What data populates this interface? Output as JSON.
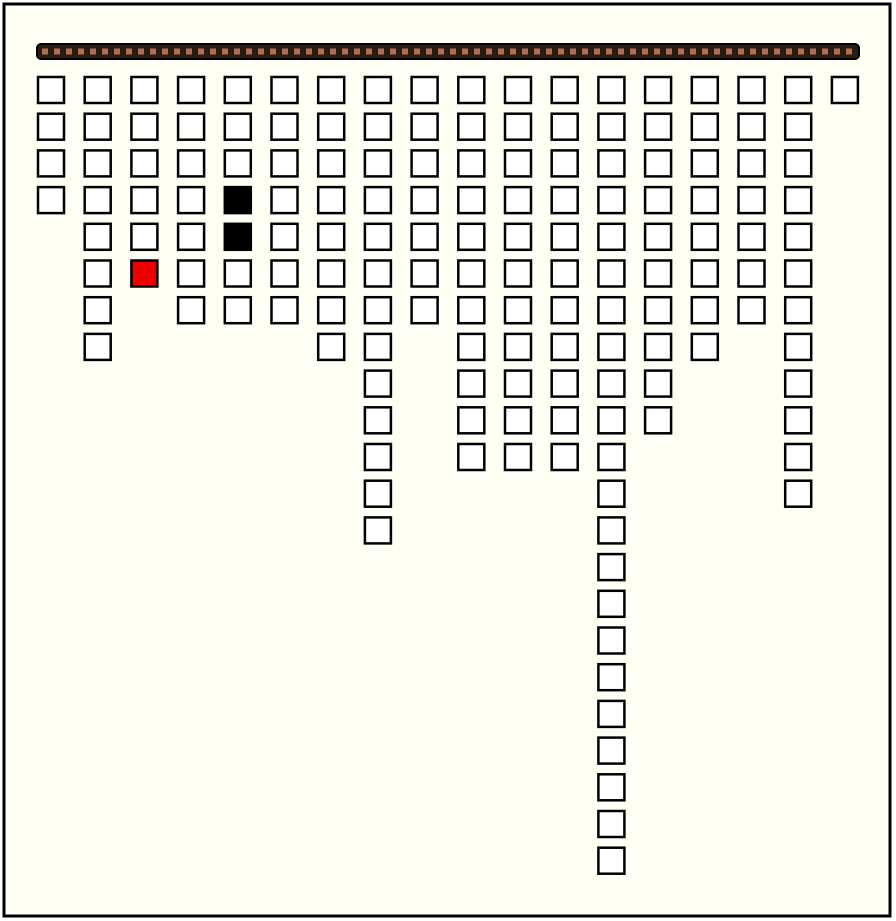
{
  "columns": [
    4,
    8,
    6,
    7,
    7,
    7,
    8,
    13,
    7,
    11,
    11,
    11,
    22,
    10,
    8,
    7,
    12,
    1
  ],
  "dark_cells": [
    [
      4,
      3
    ],
    [
      4,
      4
    ]
  ],
  "red_cells": [
    [
      2,
      5
    ]
  ]
}
